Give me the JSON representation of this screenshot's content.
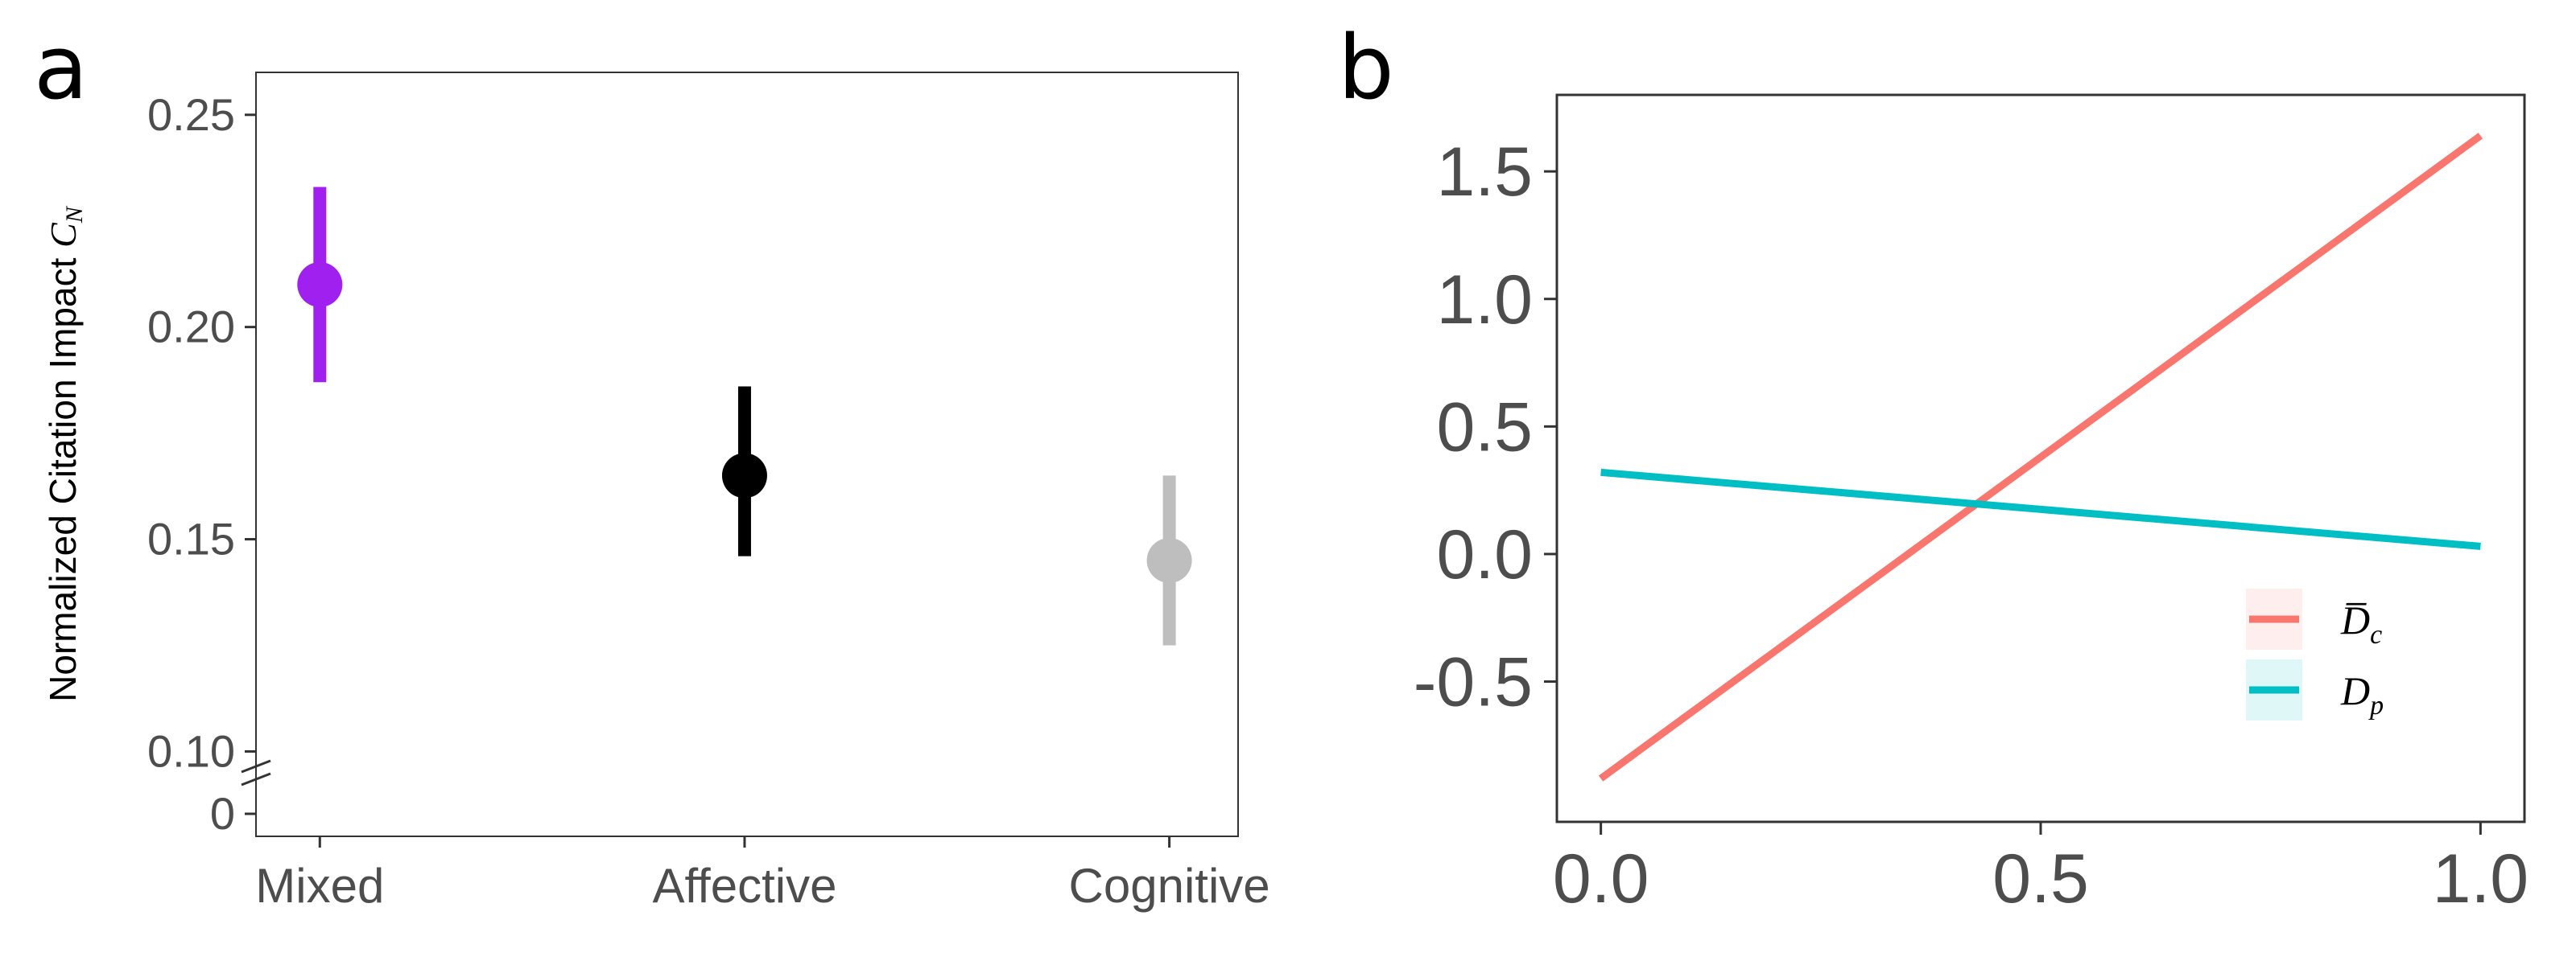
{
  "chart_data": [
    {
      "panel": "a",
      "type": "scatter",
      "title": "",
      "xlabel": "",
      "ylabel": "Normalized Citation Impact",
      "ylabel_symbol": "C",
      "ylabel_symbol_sub": "N",
      "categories": [
        "Mixed",
        "Affective",
        "Cognitive"
      ],
      "values": [
        0.21,
        0.165,
        0.145
      ],
      "ci_low": [
        0.187,
        0.146,
        0.125
      ],
      "ci_high": [
        0.233,
        0.186,
        0.165
      ],
      "colors": [
        "#a020f0",
        "#000000",
        "#bebebe"
      ],
      "y_ticks": [
        0.1,
        0.15,
        0.2,
        0.25
      ],
      "y_tick_labels": [
        "0.10",
        "0.15",
        "0.20",
        "0.25"
      ],
      "y_zero_label": "0",
      "y_axis_break": true,
      "ylim": [
        0.08,
        0.26
      ],
      "grid": false
    },
    {
      "panel": "b",
      "type": "line",
      "title": "",
      "xlabel": "",
      "ylabel": "",
      "xlim": [
        -0.05,
        1.05
      ],
      "ylim": [
        -1.05,
        1.8
      ],
      "x_ticks": [
        0.0,
        0.5,
        1.0
      ],
      "x_tick_labels": [
        "0.0",
        "0.5",
        "1.0"
      ],
      "y_ticks": [
        -0.5,
        0.0,
        0.5,
        1.0,
        1.5
      ],
      "y_tick_labels": [
        "-0.5",
        "0.0",
        "0.5",
        "1.0",
        "1.5"
      ],
      "grid": false,
      "legend_position": "bottom-right",
      "series": [
        {
          "name": "D̅",
          "sub": "c",
          "color": "#f8766d",
          "x": [
            0.0,
            1.0
          ],
          "y": [
            -0.88,
            1.64
          ]
        },
        {
          "name": "D",
          "sub": "p",
          "color": "#00bfc4",
          "x": [
            0.0,
            1.0
          ],
          "y": [
            0.32,
            0.03
          ]
        }
      ]
    }
  ],
  "panel_labels": [
    "a",
    "b"
  ]
}
